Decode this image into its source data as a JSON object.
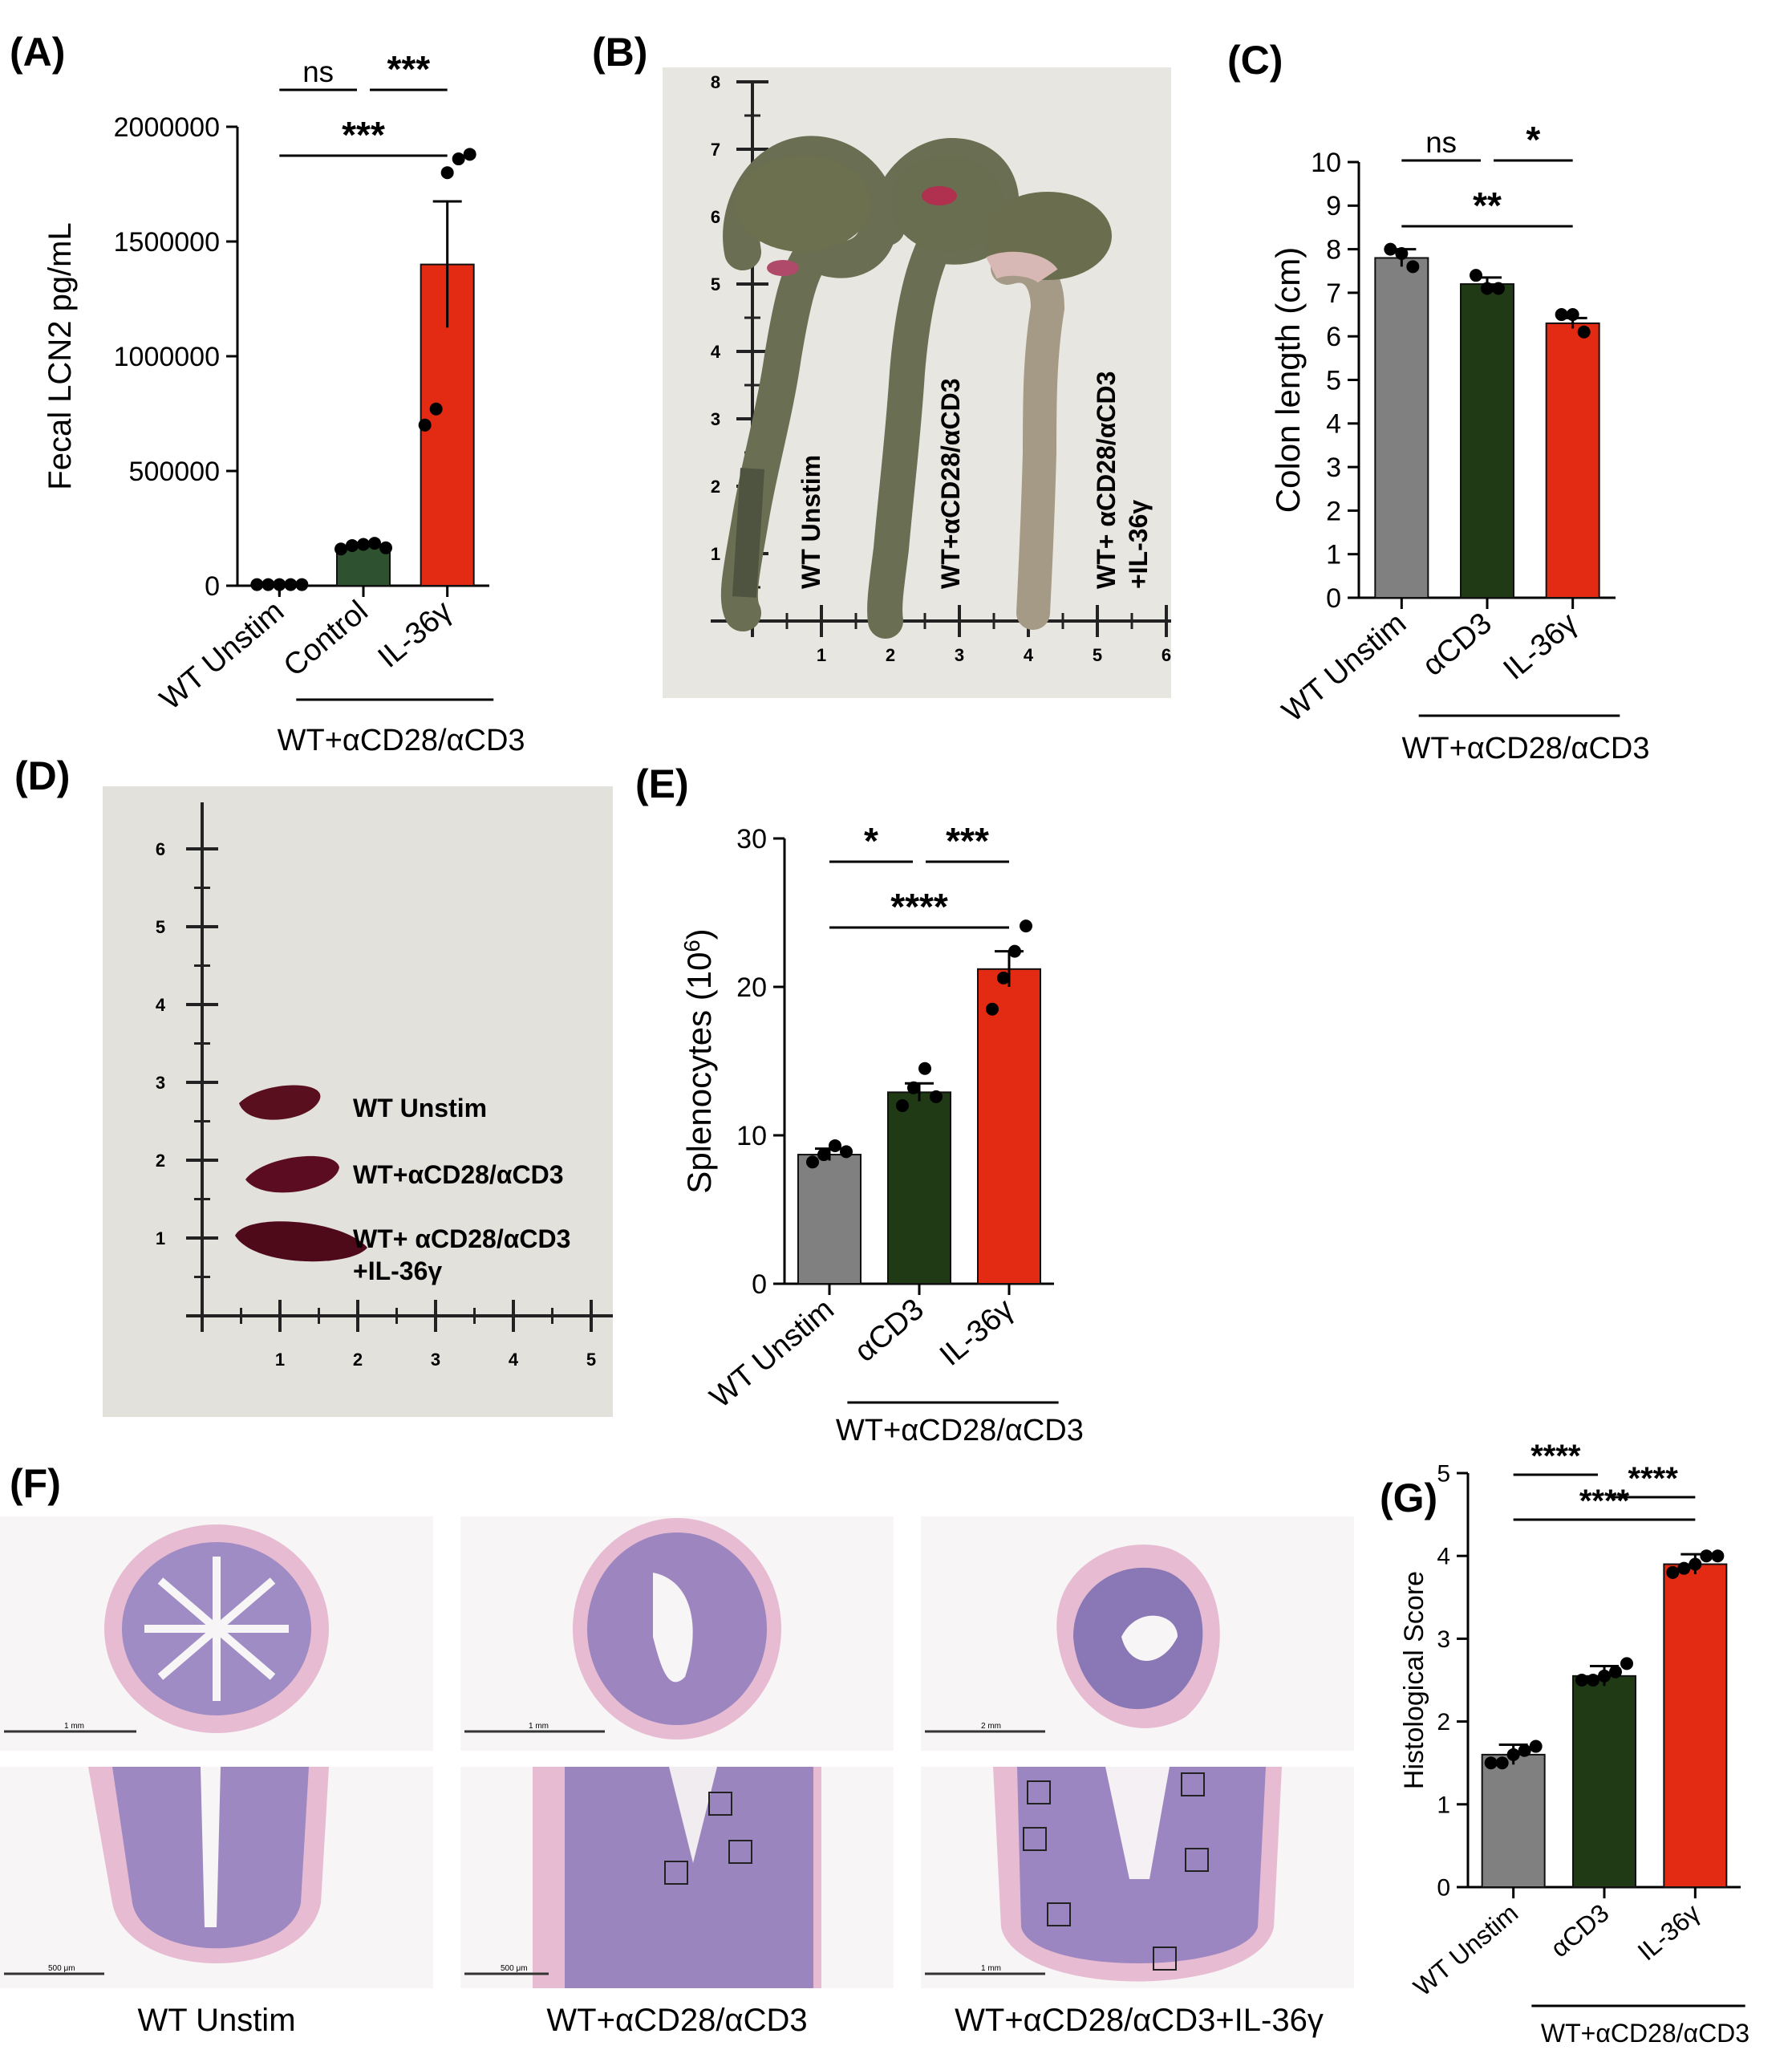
{
  "panels": {
    "A": {
      "letter": "(A)"
    },
    "B": {
      "letter": "(B)"
    },
    "C": {
      "letter": "(C)"
    },
    "D": {
      "letter": "(D)"
    },
    "E": {
      "letter": "(E)"
    },
    "F": {
      "letter": "(F)"
    },
    "G": {
      "letter": "(G)"
    }
  },
  "colors": {
    "unstim": "#808080",
    "control": "#2e5230",
    "acd3": "#1f3a14",
    "il36": "#e32a12",
    "photo_bg": "#e8e6e0",
    "tissue_purple": "#9a86bf",
    "tissue_pink": "#e7bcd2"
  },
  "photo_b": {
    "ruler_y": [
      "1",
      "2",
      "3",
      "4",
      "5",
      "6",
      "7",
      "8"
    ],
    "ruler_x": [
      "1",
      "2",
      "3",
      "4",
      "5",
      "6"
    ],
    "labels": [
      "WT Unstim",
      "WT+αCD28/αCD3",
      "WT+ αCD28/αCD3",
      "+IL-36γ"
    ]
  },
  "photo_d": {
    "ruler_y": [
      "1",
      "2",
      "3",
      "4",
      "5",
      "6"
    ],
    "ruler_x": [
      "1",
      "2",
      "3",
      "4",
      "5"
    ],
    "labels": [
      "WT Unstim",
      "WT+αCD28/αCD3",
      "WT+ αCD28/αCD3",
      "+IL-36γ"
    ]
  },
  "panel_f": {
    "captions": [
      "WT Unstim",
      "WT+αCD28/αCD3",
      "WT+αCD28/αCD3+IL-36γ"
    ],
    "scale_bars": [
      "1 mm",
      "1 mm",
      "2 mm",
      "500 μm",
      "500 μm",
      "1 mm"
    ]
  },
  "chart_data": [
    {
      "id": "A",
      "type": "bar",
      "categories": [
        "WT Unstim",
        "Control",
        "IL-36γ"
      ],
      "group_label": "WT+αCD28/αCD3",
      "ylabel": "Fecal LCN2 pg/mL",
      "ylim": [
        0,
        2000000
      ],
      "yticks": [
        0,
        500000,
        1000000,
        1500000,
        2000000
      ],
      "ytick_labels": [
        "0",
        "500000",
        "1000000",
        "1500000",
        "2000000"
      ],
      "values": [
        0,
        170000,
        1400000
      ],
      "errors": [
        0,
        8000,
        275000
      ],
      "points": [
        [
          5000,
          5000,
          5000,
          5000,
          5000
        ],
        [
          160000,
          175000,
          180000,
          185000,
          165000
        ],
        [
          700000,
          770000,
          1800000,
          1860000,
          1880000
        ]
      ],
      "significance": [
        {
          "label": "ns",
          "from": 0,
          "to": 1
        },
        {
          "label": "***",
          "from": 1,
          "to": 2
        },
        {
          "label": "***",
          "from": 0,
          "to": 2
        }
      ]
    },
    {
      "id": "C",
      "type": "bar",
      "categories": [
        "WT Unstim",
        "αCD3",
        "IL-36γ"
      ],
      "group_label": "WT+αCD28/αCD3",
      "ylabel": "Colon length (cm)",
      "ylim": [
        0,
        10
      ],
      "yticks": [
        0,
        1,
        2,
        3,
        4,
        5,
        6,
        7,
        8,
        9,
        10
      ],
      "ytick_labels": [
        "0",
        "1",
        "2",
        "3",
        "4",
        "5",
        "6",
        "7",
        "8",
        "9",
        "10"
      ],
      "values": [
        7.8,
        7.2,
        6.3
      ],
      "errors": [
        0.2,
        0.15,
        0.12
      ],
      "points": [
        [
          8.0,
          7.9,
          7.6
        ],
        [
          7.4,
          7.1,
          7.1
        ],
        [
          6.5,
          6.5,
          6.1
        ]
      ],
      "significance": [
        {
          "label": "ns",
          "from": 0,
          "to": 1
        },
        {
          "label": "*",
          "from": 1,
          "to": 2
        },
        {
          "label": "**",
          "from": 0,
          "to": 2
        }
      ]
    },
    {
      "id": "E",
      "type": "bar",
      "categories": [
        "WT Unstim",
        "αCD3",
        "IL-36γ"
      ],
      "group_label": "WT+αCD28/αCD3",
      "ylabel": "Splenocytes (10",
      "ylabel_sup": "6",
      "ylabel_end": ")",
      "ylim": [
        0,
        30
      ],
      "yticks": [
        0,
        10,
        20,
        30
      ],
      "ytick_labels": [
        "0",
        "10",
        "20",
        "30"
      ],
      "values": [
        8.7,
        12.9,
        21.2
      ],
      "errors": [
        0.4,
        0.6,
        1.2
      ],
      "points": [
        [
          8.2,
          8.7,
          9.3,
          8.9
        ],
        [
          12.0,
          13.2,
          14.5,
          12.6
        ],
        [
          18.5,
          20.6,
          22.4,
          24.1
        ]
      ],
      "significance": [
        {
          "label": "*",
          "from": 0,
          "to": 1
        },
        {
          "label": "***",
          "from": 1,
          "to": 2
        },
        {
          "label": "****",
          "from": 0,
          "to": 2
        }
      ]
    },
    {
      "id": "G",
      "type": "bar",
      "categories": [
        "WT Unstim",
        "αCD3",
        "IL-36γ"
      ],
      "group_label": "WT+αCD28/αCD3",
      "ylabel": "Histological Score",
      "ylim": [
        0,
        5
      ],
      "yticks": [
        0,
        1,
        2,
        3,
        4,
        5
      ],
      "ytick_labels": [
        "0",
        "1",
        "2",
        "3",
        "4",
        "5"
      ],
      "values": [
        1.6,
        2.55,
        3.9
      ],
      "errors": [
        0.12,
        0.12,
        0.12
      ],
      "points": [
        [
          1.5,
          1.5,
          1.6,
          1.65,
          1.7
        ],
        [
          2.5,
          2.5,
          2.55,
          2.6,
          2.7
        ],
        [
          3.8,
          3.85,
          3.9,
          4.0,
          4.0
        ]
      ],
      "significance": [
        {
          "label": "****",
          "from": 0,
          "to": 1
        },
        {
          "label": "****",
          "from": 1,
          "to": 2
        },
        {
          "label": "****",
          "from": 0,
          "to": 2
        }
      ]
    }
  ]
}
